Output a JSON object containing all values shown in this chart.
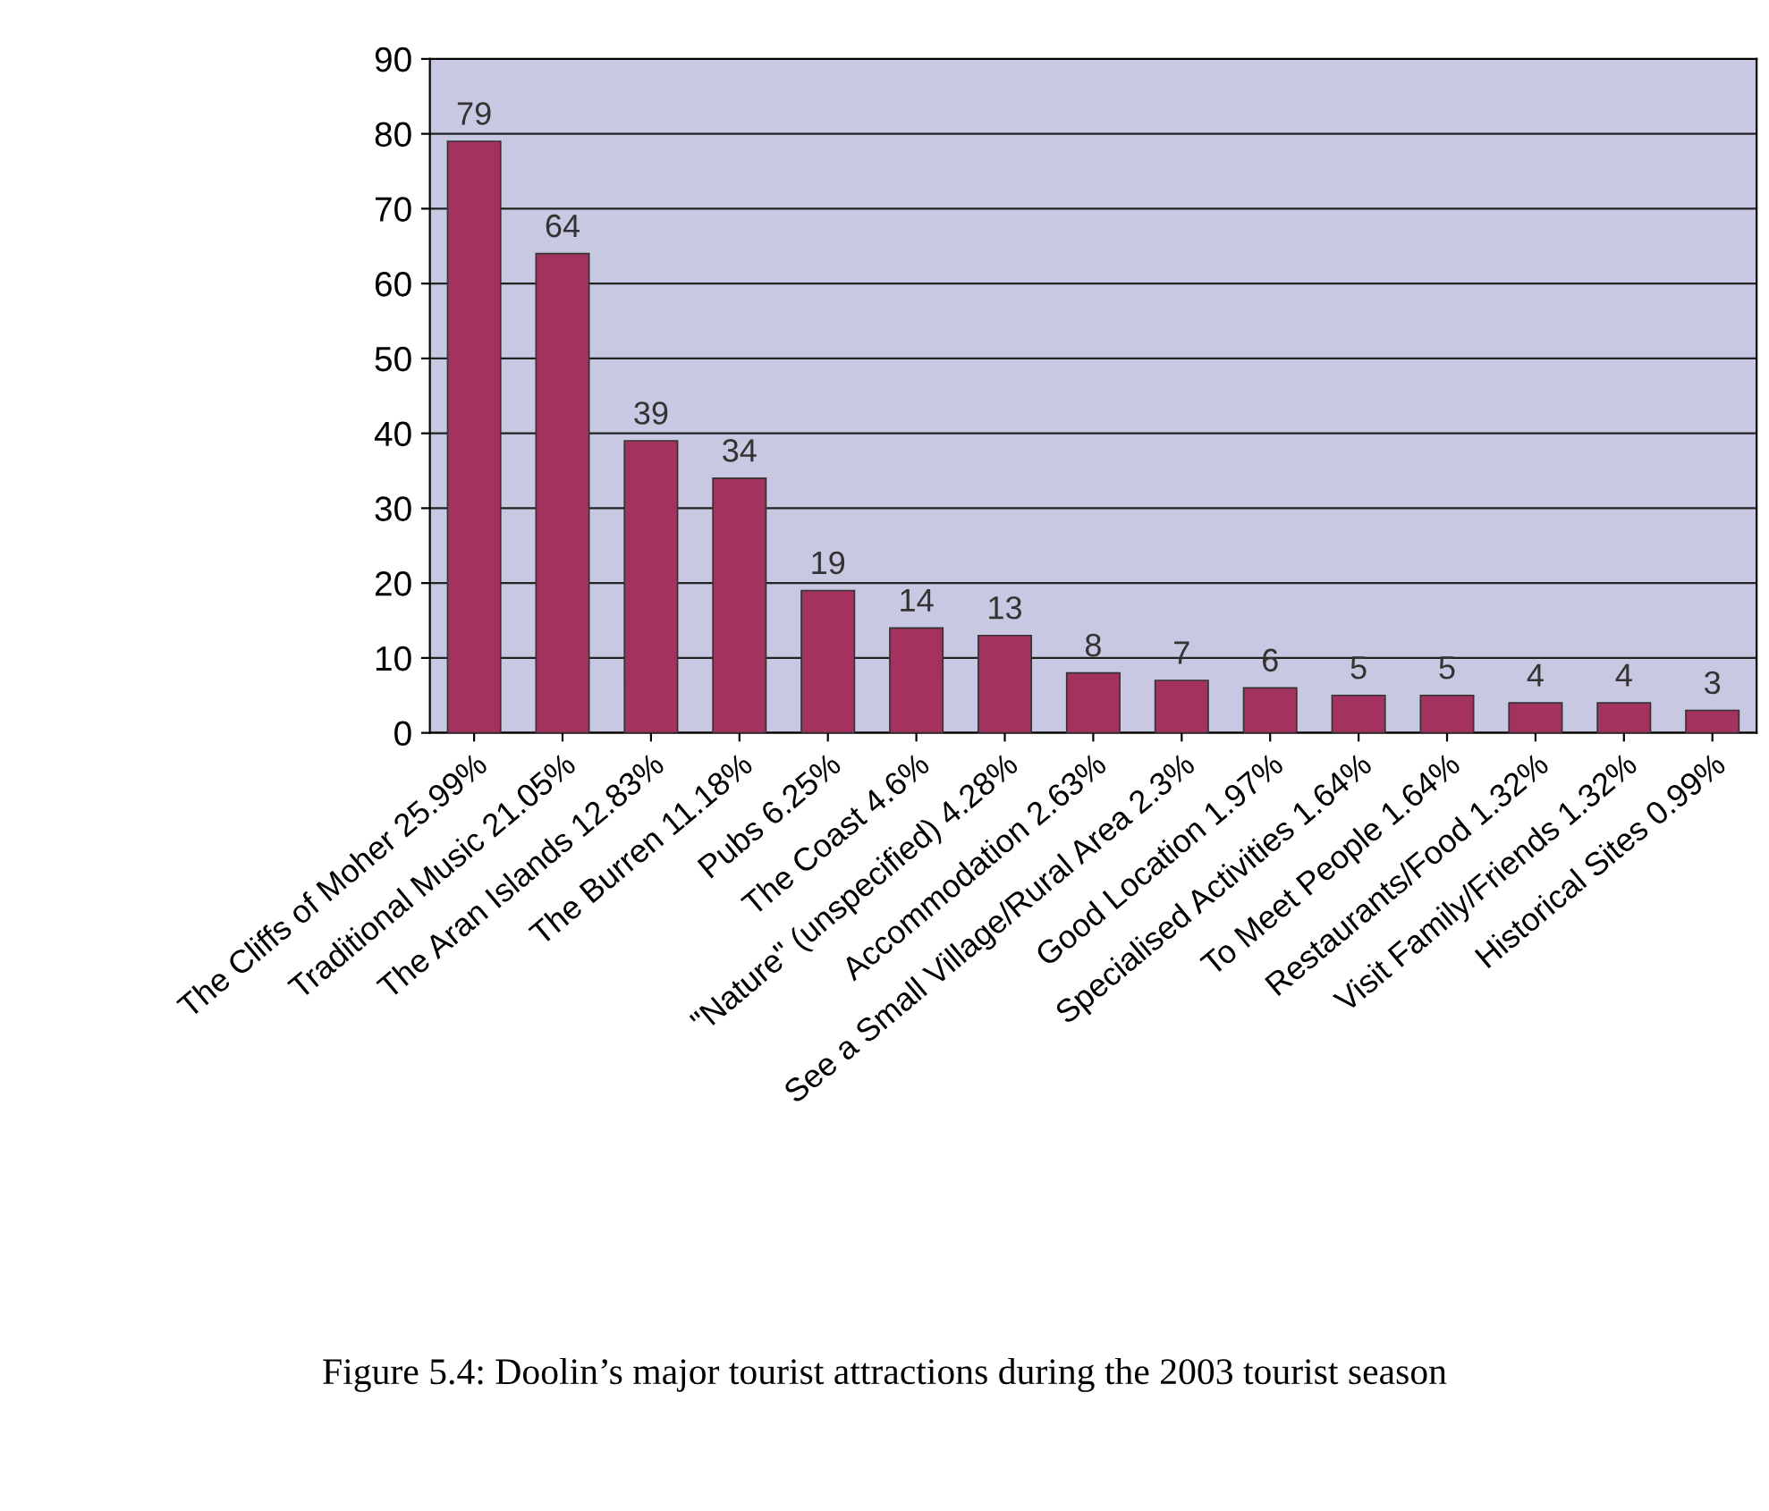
{
  "chart_data": {
    "type": "bar",
    "categories": [
      "The Cliffs of Moher 25.99%",
      "Traditional Music 21.05%",
      "The Aran Islands 12.83%",
      "The Burren 11.18%",
      "Pubs 6.25%",
      "The Coast 4.6%",
      "\"Nature\" (unspecified) 4.28%",
      "Accommodation 2.63%",
      "See a Small Village/Rural Area 2.3%",
      "Good Location 1.97%",
      "Specialised Activities 1.64%",
      "To Meet People 1.64%",
      "Restaurants/Food 1.32%",
      "Visit Family/Friends 1.32%",
      "Historical Sites 0.99%"
    ],
    "values": [
      79,
      64,
      39,
      34,
      19,
      14,
      13,
      8,
      7,
      6,
      5,
      5,
      4,
      4,
      3
    ],
    "color": "#a3325e",
    "ylim": [
      0,
      90
    ],
    "yticks": [
      0,
      10,
      20,
      30,
      40,
      50,
      60,
      70,
      80,
      90
    ],
    "grid": "y",
    "data_labels": true,
    "annotations": [
      "Figure 5.4: Doolin’s major tourist attractions during the 2003 tourist season"
    ]
  }
}
